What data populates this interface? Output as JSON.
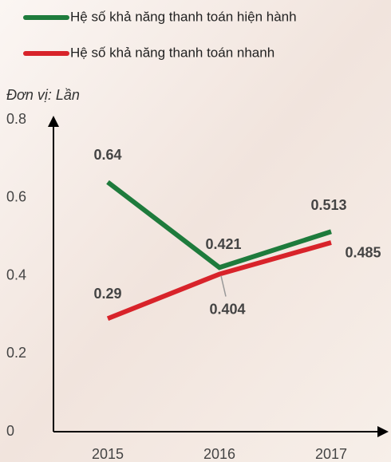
{
  "chart_data": {
    "type": "line",
    "y_label": "Đơn vị: Lần",
    "categories": [
      "2015",
      "2016",
      "2017"
    ],
    "series": [
      {
        "name": "Hệ số khả năng thanh toán hiện hành",
        "color": "#1e7b3c",
        "values": [
          0.64,
          0.421,
          0.513
        ]
      },
      {
        "name": "Hệ số khả năng thanh toán nhanh",
        "color": "#d8232a",
        "values": [
          0.29,
          0.404,
          0.485
        ]
      }
    ],
    "ylim": [
      0,
      0.8
    ],
    "yticks": [
      0,
      0.2,
      0.4,
      0.6,
      0.8
    ],
    "grid": false
  }
}
